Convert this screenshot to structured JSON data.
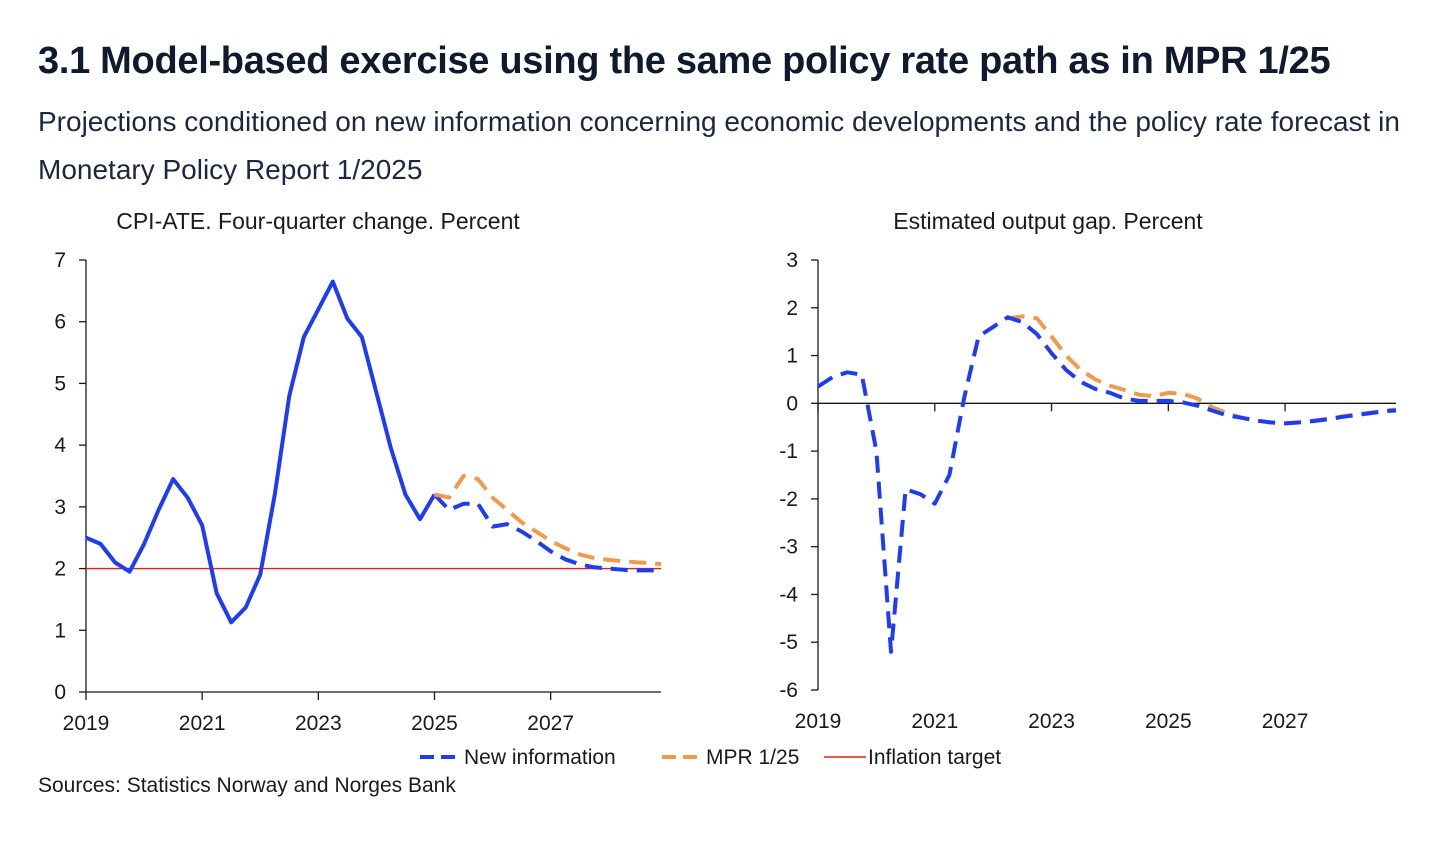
{
  "title": "3.1 Model-based exercise using the same policy rate path as in MPR 1/25",
  "subtitle": "Projections conditioned on new information concerning economic developments and the policy rate forecast in Monetary Policy Report 1/2025",
  "sources": "Sources: Statistics Norway and  Norges Bank",
  "colors": {
    "new_information": "#1f3cf5",
    "mpr": "#ef9a4e",
    "target": "#e0201b",
    "axis": "#1a1a1a"
  },
  "legend": [
    {
      "label": "New information",
      "style": "dash",
      "color": "#1f3cf5"
    },
    {
      "label": "MPR 1/25",
      "style": "dash",
      "color": "#ef9a4e"
    },
    {
      "label": "Inflation target",
      "style": "solid",
      "color": "#e0201b"
    }
  ],
  "chart_data": [
    {
      "type": "line",
      "title": "CPI-ATE. Four-quarter change. Percent",
      "xlabel": "",
      "ylabel": "",
      "xlim": [
        2019,
        2028.9
      ],
      "ylim": [
        0,
        7
      ],
      "yticks": [
        "0",
        "1",
        "2",
        "3",
        "4",
        "5",
        "6",
        "7"
      ],
      "xticks": [
        "2019",
        "2021",
        "2023",
        "2025",
        "2027"
      ],
      "reference_line": {
        "name": "Inflation target",
        "y": 2
      },
      "series": [
        {
          "name": "New information (history)",
          "style": "solid",
          "x": [
            2019.0,
            2019.25,
            2019.5,
            2019.75,
            2020.0,
            2020.25,
            2020.5,
            2020.75,
            2021.0,
            2021.25,
            2021.5,
            2021.75,
            2022.0,
            2022.25,
            2022.5,
            2022.75,
            2023.0,
            2023.25,
            2023.5,
            2023.75,
            2024.0,
            2024.25,
            2024.5,
            2024.75,
            2025.0
          ],
          "y": [
            2.5,
            2.4,
            2.1,
            1.95,
            2.4,
            2.95,
            3.45,
            3.15,
            2.7,
            1.6,
            1.13,
            1.37,
            1.9,
            3.2,
            4.8,
            5.75,
            6.2,
            6.65,
            6.05,
            5.75,
            4.85,
            3.95,
            3.2,
            2.8,
            3.2
          ]
        },
        {
          "name": "New information",
          "style": "dash",
          "x": [
            2025.0,
            2025.25,
            2025.5,
            2025.75,
            2026.0,
            2026.25,
            2026.5,
            2026.75,
            2027.0,
            2027.25,
            2027.5,
            2027.75,
            2028.0,
            2028.25,
            2028.5,
            2028.75,
            2028.9
          ],
          "y": [
            3.2,
            2.95,
            3.05,
            3.05,
            2.68,
            2.72,
            2.6,
            2.45,
            2.28,
            2.15,
            2.07,
            2.02,
            2.0,
            1.98,
            1.97,
            1.97,
            1.98
          ]
        },
        {
          "name": "MPR 1/25",
          "style": "dash",
          "x": [
            2025.0,
            2025.25,
            2025.5,
            2025.75,
            2026.0,
            2026.25,
            2026.5,
            2026.75,
            2027.0,
            2027.25,
            2027.5,
            2027.75,
            2028.0,
            2028.25,
            2028.5,
            2028.75,
            2028.9
          ],
          "y": [
            3.2,
            3.15,
            3.5,
            3.45,
            3.15,
            2.95,
            2.75,
            2.6,
            2.45,
            2.33,
            2.23,
            2.17,
            2.14,
            2.12,
            2.1,
            2.09,
            2.07
          ]
        }
      ]
    },
    {
      "type": "line",
      "title": "Estimated output gap. Percent",
      "xlabel": "",
      "ylabel": "",
      "xlim": [
        2019,
        2028.9
      ],
      "ylim": [
        -6,
        3
      ],
      "yticks": [
        "-6",
        "-5",
        "-4",
        "-3",
        "-2",
        "-1",
        "0",
        "1",
        "2",
        "3"
      ],
      "xticks": [
        "2019",
        "2021",
        "2023",
        "2025",
        "2027"
      ],
      "reference_line": {
        "name": "zero",
        "y": 0
      },
      "series": [
        {
          "name": "MPR 1/25",
          "style": "dash",
          "x": [
            2022.25,
            2022.5,
            2022.75,
            2023.0,
            2023.25,
            2023.5,
            2023.75,
            2024.0,
            2024.25,
            2024.5,
            2024.75,
            2025.0,
            2025.25,
            2025.5,
            2025.75,
            2026.0,
            2026.25,
            2026.5,
            2026.75,
            2027.0,
            2027.25,
            2027.5,
            2027.75,
            2028.0,
            2028.25,
            2028.5,
            2028.75,
            2028.9
          ],
          "y": [
            1.78,
            1.82,
            1.78,
            1.4,
            1.0,
            0.7,
            0.5,
            0.37,
            0.28,
            0.18,
            0.15,
            0.22,
            0.2,
            0.1,
            -0.08,
            -0.2,
            -0.3,
            -0.36,
            -0.4,
            -0.42,
            -0.4,
            -0.36,
            -0.32,
            -0.27,
            -0.23,
            -0.19,
            -0.15,
            -0.13
          ]
        },
        {
          "name": "New information",
          "style": "dash",
          "x": [
            2019.0,
            2019.25,
            2019.5,
            2019.75,
            2020.0,
            2020.25,
            2020.5,
            2020.75,
            2021.0,
            2021.25,
            2021.5,
            2021.75,
            2022.0,
            2022.25,
            2022.5,
            2022.75,
            2023.0,
            2023.25,
            2023.5,
            2023.75,
            2024.0,
            2024.25,
            2024.5,
            2024.75,
            2025.0,
            2025.25,
            2025.5,
            2025.75,
            2026.0,
            2026.25,
            2026.5,
            2026.75,
            2027.0,
            2027.25,
            2027.5,
            2027.75,
            2028.0,
            2028.25,
            2028.5,
            2028.75,
            2028.9
          ],
          "y": [
            0.35,
            0.55,
            0.65,
            0.6,
            -1.0,
            -5.2,
            -1.8,
            -1.9,
            -2.1,
            -1.5,
            0.1,
            1.4,
            1.6,
            1.8,
            1.7,
            1.45,
            1.05,
            0.7,
            0.45,
            0.3,
            0.22,
            0.1,
            0.05,
            0.05,
            0.05,
            0.02,
            -0.05,
            -0.15,
            -0.25,
            -0.3,
            -0.36,
            -0.4,
            -0.42,
            -0.4,
            -0.37,
            -0.33,
            -0.28,
            -0.24,
            -0.2,
            -0.16,
            -0.15
          ]
        }
      ]
    }
  ]
}
